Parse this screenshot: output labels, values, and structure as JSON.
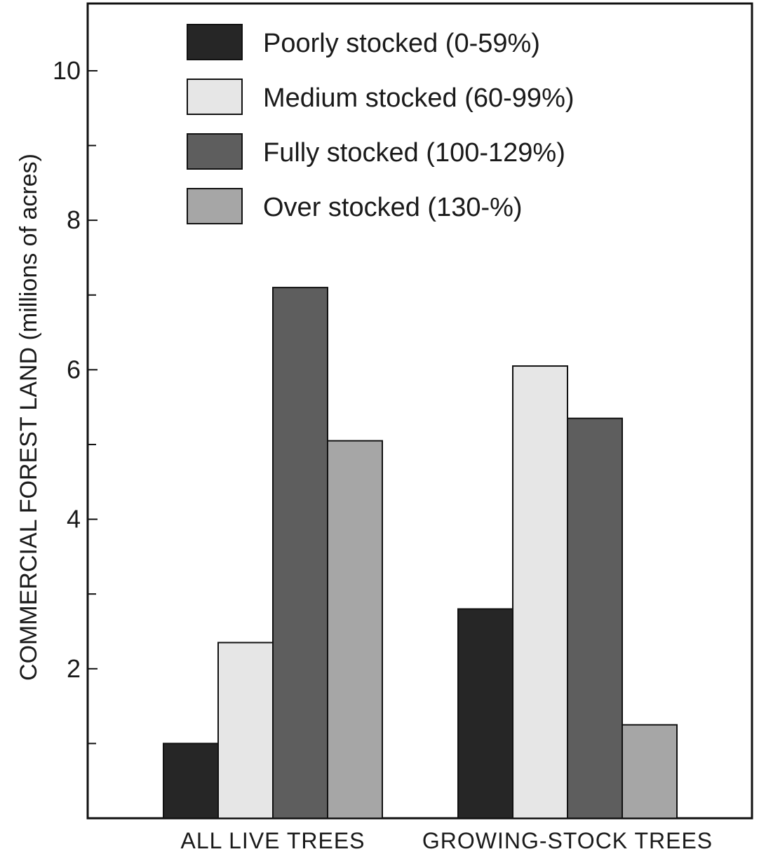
{
  "chart_data": {
    "type": "bar",
    "title": "",
    "xlabel": "",
    "ylabel": "COMMERCIAL FOREST LAND (millions of acres)",
    "ylim": [
      0,
      10.9
    ],
    "y_ticks_labeled": [
      2,
      4,
      6,
      8,
      10
    ],
    "y_ticks_minor": [
      1,
      3,
      5,
      7,
      9
    ],
    "categories": [
      "ALL LIVE TREES",
      "GROWING-STOCK TREES"
    ],
    "series": [
      {
        "name": "Poorly stocked (0-59%)",
        "color": "#262626",
        "values": [
          1.0,
          2.8
        ]
      },
      {
        "name": "Medium stocked (60-99%)",
        "color": "#e6e6e6",
        "values": [
          2.35,
          6.05
        ]
      },
      {
        "name": "Fully stocked (100-129%)",
        "color": "#5e5e5e",
        "values": [
          7.1,
          5.35
        ]
      },
      {
        "name": "Over stocked (130-%)",
        "color": "#a6a6a6",
        "values": [
          5.05,
          1.25
        ]
      }
    ],
    "legend_position": "top-left",
    "grid": false
  }
}
